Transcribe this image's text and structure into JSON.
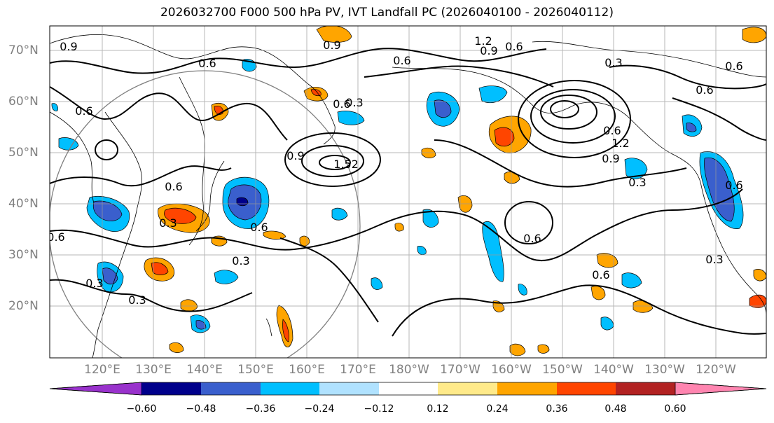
{
  "map": {
    "title": "2026032700 F000 500 hPa PV, IVT Landfall PC (2026040100 - 2026040112)",
    "lat_labels": [
      "70°N",
      "60°N",
      "50°N",
      "40°N",
      "30°N",
      "20°N"
    ],
    "lon_labels": [
      "120°E",
      "130°E",
      "140°E",
      "150°E",
      "160°E",
      "170°E",
      "180°W",
      "170°W",
      "160°W",
      "150°W",
      "140°W",
      "130°W",
      "120°W"
    ],
    "contour_labels": [
      "0.9",
      "0.6",
      "0.6",
      "0.6",
      "0.3",
      "0.3",
      "1.2",
      "0.9",
      "0.6",
      "0.6",
      "0.3",
      "0.6",
      "0.6",
      "0.6",
      "0.6",
      "0.3",
      "0.9",
      "1.52",
      "1.2",
      "0.9",
      "0.6",
      "0.6",
      "0.3",
      "0.3",
      "0.3",
      "0.6",
      "0.6",
      "0.3",
      "0.9",
      "0.6"
    ],
    "colorbar": {
      "ticks": [
        "−0.60",
        "−0.48",
        "−0.36",
        "−0.24",
        "−0.12",
        "0.12",
        "0.24",
        "0.36",
        "0.48",
        "0.60"
      ],
      "colors": [
        "#9932cc",
        "#00008b",
        "#3a5fcd",
        "#00bfff",
        "#b0e2ff",
        "#ffffff",
        "#ffea8a",
        "#ffa500",
        "#ff4500",
        "#b22222",
        "#ff85b0"
      ]
    }
  }
}
